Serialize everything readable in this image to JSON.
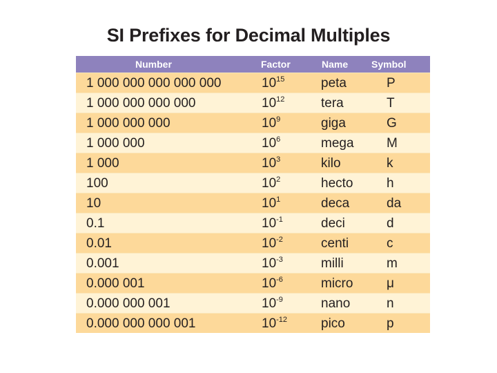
{
  "title": "SI Prefixes for Decimal Multiples",
  "table": {
    "headers": {
      "number": "Number",
      "factor": "Factor",
      "name": "Name",
      "symbol": "Symbol"
    },
    "rows": [
      {
        "number": "1 000 000 000 000 000",
        "factor_base": "10",
        "factor_exp": "15",
        "name": "peta",
        "symbol": "P"
      },
      {
        "number": "1 000 000 000 000",
        "factor_base": "10",
        "factor_exp": "12",
        "name": "tera",
        "symbol": "T"
      },
      {
        "number": "1 000 000 000",
        "factor_base": "10",
        "factor_exp": "9",
        "name": "giga",
        "symbol": "G"
      },
      {
        "number": "1 000 000",
        "factor_base": "10",
        "factor_exp": "6",
        "name": "mega",
        "symbol": "M"
      },
      {
        "number": "1 000",
        "factor_base": "10",
        "factor_exp": "3",
        "name": "kilo",
        "symbol": "k"
      },
      {
        "number": "100",
        "factor_base": "10",
        "factor_exp": "2",
        "name": "hecto",
        "symbol": "h"
      },
      {
        "number": "10",
        "factor_base": "10",
        "factor_exp": "1",
        "name": "deca",
        "symbol": "da"
      },
      {
        "number": "0.1",
        "factor_base": "10",
        "factor_exp": "-1",
        "name": "deci",
        "symbol": "d"
      },
      {
        "number": "0.01",
        "factor_base": "10",
        "factor_exp": "-2",
        "name": "centi",
        "symbol": "c"
      },
      {
        "number": "0.001",
        "factor_base": "10",
        "factor_exp": "-3",
        "name": "milli",
        "symbol": "m"
      },
      {
        "number": "0.000 001",
        "factor_base": "10",
        "factor_exp": "-6",
        "name": "micro",
        "symbol": "μ"
      },
      {
        "number": "0.000 000 001",
        "factor_base": "10",
        "factor_exp": "-9",
        "name": "nano",
        "symbol": "n"
      },
      {
        "number": "0.000 000 000 001",
        "factor_base": "10",
        "factor_exp": "-12",
        "name": "pico",
        "symbol": "p"
      }
    ]
  },
  "colors": {
    "header_bg": "#8e82bd",
    "row_dark": "#fdd99a",
    "row_light": "#fff3d6",
    "text": "#231f20"
  }
}
